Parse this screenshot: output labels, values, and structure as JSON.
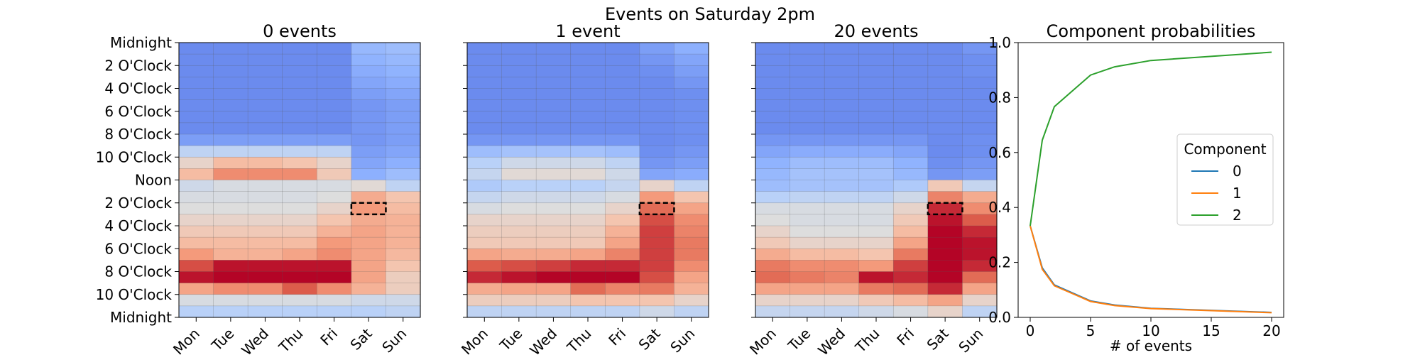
{
  "suptitle": "Events on Saturday 2pm",
  "days": [
    "Mon",
    "Tue",
    "Wed",
    "Thu",
    "Fri",
    "Sat",
    "Sun"
  ],
  "hour_labels": [
    "Midnight",
    "2 O'Clock",
    "4 O'Clock",
    "6 O'Clock",
    "8 O'Clock",
    "10 O'Clock",
    "Noon",
    "2 O'Clock",
    "4 O'Clock",
    "6 O'Clock",
    "8 O'Clock",
    "10 O'Clock",
    "Midnight"
  ],
  "highlight": {
    "day": "Sat",
    "hour": 14
  },
  "chart_data": [
    {
      "type": "heatmap",
      "title": "0 events",
      "rows": 24,
      "columns": [
        "Mon",
        "Tue",
        "Wed",
        "Thu",
        "Fri",
        "Sat",
        "Sun"
      ],
      "values": [
        [
          0.15,
          0.15,
          0.15,
          0.15,
          0.15,
          0.28,
          0.3
        ],
        [
          0.15,
          0.15,
          0.15,
          0.15,
          0.15,
          0.26,
          0.28
        ],
        [
          0.15,
          0.15,
          0.15,
          0.15,
          0.15,
          0.24,
          0.26
        ],
        [
          0.15,
          0.15,
          0.15,
          0.15,
          0.15,
          0.22,
          0.24
        ],
        [
          0.15,
          0.15,
          0.15,
          0.15,
          0.15,
          0.2,
          0.22
        ],
        [
          0.15,
          0.15,
          0.15,
          0.15,
          0.15,
          0.18,
          0.2
        ],
        [
          0.15,
          0.15,
          0.15,
          0.15,
          0.15,
          0.18,
          0.2
        ],
        [
          0.15,
          0.15,
          0.15,
          0.15,
          0.15,
          0.18,
          0.2
        ],
        [
          0.2,
          0.2,
          0.2,
          0.2,
          0.2,
          0.18,
          0.2
        ],
        [
          0.4,
          0.4,
          0.4,
          0.4,
          0.4,
          0.2,
          0.22
        ],
        [
          0.55,
          0.65,
          0.65,
          0.62,
          0.55,
          0.22,
          0.25
        ],
        [
          0.65,
          0.78,
          0.78,
          0.78,
          0.6,
          0.25,
          0.3
        ],
        [
          0.45,
          0.48,
          0.48,
          0.48,
          0.48,
          0.52,
          0.4
        ],
        [
          0.48,
          0.48,
          0.48,
          0.48,
          0.5,
          0.7,
          0.62
        ],
        [
          0.5,
          0.5,
          0.5,
          0.5,
          0.55,
          0.75,
          0.65
        ],
        [
          0.55,
          0.55,
          0.55,
          0.55,
          0.62,
          0.7,
          0.68
        ],
        [
          0.6,
          0.6,
          0.6,
          0.6,
          0.68,
          0.72,
          0.68
        ],
        [
          0.65,
          0.65,
          0.65,
          0.65,
          0.75,
          0.72,
          0.68
        ],
        [
          0.75,
          0.68,
          0.68,
          0.72,
          0.78,
          0.72,
          0.66
        ],
        [
          0.9,
          0.98,
          0.98,
          0.98,
          0.98,
          0.72,
          0.62
        ],
        [
          0.98,
          1.0,
          1.0,
          1.0,
          1.0,
          0.72,
          0.58
        ],
        [
          0.72,
          0.78,
          0.78,
          0.88,
          0.78,
          0.68,
          0.58
        ],
        [
          0.48,
          0.48,
          0.48,
          0.48,
          0.48,
          0.45,
          0.45
        ],
        [
          0.38,
          0.38,
          0.38,
          0.38,
          0.38,
          0.38,
          0.4
        ]
      ],
      "highlight_cell": {
        "day": "Sat",
        "hour": 14
      }
    },
    {
      "type": "heatmap",
      "title": "1 event",
      "rows": 24,
      "columns": [
        "Mon",
        "Tue",
        "Wed",
        "Thu",
        "Fri",
        "Sat",
        "Sun"
      ],
      "values": [
        [
          0.15,
          0.15,
          0.15,
          0.15,
          0.15,
          0.2,
          0.25
        ],
        [
          0.15,
          0.15,
          0.15,
          0.15,
          0.15,
          0.18,
          0.22
        ],
        [
          0.15,
          0.15,
          0.15,
          0.15,
          0.15,
          0.16,
          0.2
        ],
        [
          0.15,
          0.15,
          0.15,
          0.15,
          0.15,
          0.15,
          0.18
        ],
        [
          0.15,
          0.15,
          0.15,
          0.15,
          0.15,
          0.15,
          0.16
        ],
        [
          0.15,
          0.15,
          0.15,
          0.15,
          0.15,
          0.15,
          0.16
        ],
        [
          0.15,
          0.15,
          0.15,
          0.15,
          0.15,
          0.15,
          0.16
        ],
        [
          0.15,
          0.15,
          0.15,
          0.15,
          0.15,
          0.15,
          0.16
        ],
        [
          0.18,
          0.18,
          0.18,
          0.18,
          0.18,
          0.15,
          0.16
        ],
        [
          0.3,
          0.32,
          0.32,
          0.32,
          0.3,
          0.16,
          0.18
        ],
        [
          0.38,
          0.45,
          0.45,
          0.45,
          0.4,
          0.18,
          0.2
        ],
        [
          0.42,
          0.52,
          0.52,
          0.52,
          0.45,
          0.22,
          0.24
        ],
        [
          0.35,
          0.38,
          0.38,
          0.38,
          0.42,
          0.55,
          0.4
        ],
        [
          0.42,
          0.45,
          0.45,
          0.45,
          0.48,
          0.75,
          0.62
        ],
        [
          0.48,
          0.5,
          0.5,
          0.5,
          0.55,
          0.85,
          0.72
        ],
        [
          0.55,
          0.55,
          0.55,
          0.55,
          0.62,
          0.9,
          0.78
        ],
        [
          0.58,
          0.58,
          0.58,
          0.58,
          0.68,
          0.92,
          0.8
        ],
        [
          0.6,
          0.6,
          0.6,
          0.6,
          0.72,
          0.92,
          0.82
        ],
        [
          0.72,
          0.7,
          0.7,
          0.72,
          0.8,
          0.92,
          0.82
        ],
        [
          0.88,
          0.9,
          0.92,
          0.95,
          0.95,
          0.92,
          0.78
        ],
        [
          0.95,
          0.98,
          1.0,
          1.0,
          1.0,
          0.9,
          0.72
        ],
        [
          0.7,
          0.72,
          0.72,
          0.85,
          0.8,
          0.82,
          0.68
        ],
        [
          0.58,
          0.58,
          0.58,
          0.62,
          0.62,
          0.62,
          0.55
        ],
        [
          0.4,
          0.4,
          0.4,
          0.4,
          0.4,
          0.45,
          0.4
        ]
      ],
      "highlight_cell": {
        "day": "Sat",
        "hour": 14
      }
    },
    {
      "type": "heatmap",
      "title": "20 events",
      "rows": 24,
      "columns": [
        "Mon",
        "Tue",
        "Wed",
        "Thu",
        "Fri",
        "Sat",
        "Sun"
      ],
      "values": [
        [
          0.15,
          0.15,
          0.15,
          0.15,
          0.15,
          0.15,
          0.18
        ],
        [
          0.15,
          0.15,
          0.15,
          0.15,
          0.15,
          0.15,
          0.16
        ],
        [
          0.15,
          0.15,
          0.15,
          0.15,
          0.15,
          0.15,
          0.16
        ],
        [
          0.15,
          0.15,
          0.15,
          0.15,
          0.15,
          0.15,
          0.15
        ],
        [
          0.15,
          0.15,
          0.15,
          0.15,
          0.15,
          0.15,
          0.15
        ],
        [
          0.15,
          0.15,
          0.15,
          0.15,
          0.15,
          0.15,
          0.15
        ],
        [
          0.15,
          0.15,
          0.15,
          0.15,
          0.15,
          0.15,
          0.15
        ],
        [
          0.15,
          0.15,
          0.15,
          0.15,
          0.15,
          0.15,
          0.15
        ],
        [
          0.18,
          0.18,
          0.18,
          0.18,
          0.18,
          0.15,
          0.16
        ],
        [
          0.22,
          0.24,
          0.24,
          0.24,
          0.22,
          0.15,
          0.16
        ],
        [
          0.26,
          0.3,
          0.3,
          0.3,
          0.26,
          0.16,
          0.18
        ],
        [
          0.28,
          0.32,
          0.32,
          0.32,
          0.28,
          0.18,
          0.2
        ],
        [
          0.3,
          0.32,
          0.32,
          0.32,
          0.35,
          0.6,
          0.42
        ],
        [
          0.38,
          0.4,
          0.4,
          0.4,
          0.45,
          0.8,
          0.7
        ],
        [
          0.48,
          0.48,
          0.48,
          0.48,
          0.55,
          0.95,
          0.78
        ],
        [
          0.5,
          0.48,
          0.48,
          0.48,
          0.6,
          0.98,
          0.88
        ],
        [
          0.55,
          0.5,
          0.5,
          0.5,
          0.65,
          1.0,
          0.95
        ],
        [
          0.6,
          0.55,
          0.55,
          0.55,
          0.72,
          1.0,
          0.98
        ],
        [
          0.7,
          0.65,
          0.65,
          0.62,
          0.82,
          1.0,
          0.98
        ],
        [
          0.82,
          0.78,
          0.78,
          0.75,
          0.92,
          1.0,
          0.95
        ],
        [
          0.85,
          0.82,
          0.8,
          0.98,
          0.95,
          1.0,
          0.85
        ],
        [
          0.72,
          0.72,
          0.72,
          0.82,
          0.85,
          0.95,
          0.72
        ],
        [
          0.55,
          0.55,
          0.55,
          0.6,
          0.65,
          0.72,
          0.55
        ],
        [
          0.42,
          0.42,
          0.42,
          0.45,
          0.48,
          0.55,
          0.4
        ]
      ],
      "highlight_cell": {
        "day": "Sat",
        "hour": 14
      }
    },
    {
      "type": "line",
      "title": "Component probabilities",
      "xlabel": "# of events",
      "ylabel": "",
      "xlim": [
        -1,
        21
      ],
      "ylim": [
        0.0,
        1.0
      ],
      "x_ticks": [
        0,
        5,
        10,
        15,
        20
      ],
      "y_ticks": [
        0.0,
        0.2,
        0.4,
        0.6,
        0.8,
        1.0
      ],
      "legend": {
        "title": "Component",
        "placement": "center-right"
      },
      "x": [
        0,
        1,
        2,
        5,
        7,
        10,
        20
      ],
      "series": [
        {
          "name": "0",
          "color": "#1f77b4",
          "values": [
            0.333,
            0.18,
            0.118,
            0.06,
            0.045,
            0.033,
            0.018
          ]
        },
        {
          "name": "1",
          "color": "#ff7f0e",
          "values": [
            0.333,
            0.175,
            0.115,
            0.058,
            0.043,
            0.032,
            0.017
          ]
        },
        {
          "name": "2",
          "color": "#2ca02c",
          "values": [
            0.333,
            0.645,
            0.767,
            0.882,
            0.912,
            0.935,
            0.965
          ]
        }
      ]
    }
  ]
}
